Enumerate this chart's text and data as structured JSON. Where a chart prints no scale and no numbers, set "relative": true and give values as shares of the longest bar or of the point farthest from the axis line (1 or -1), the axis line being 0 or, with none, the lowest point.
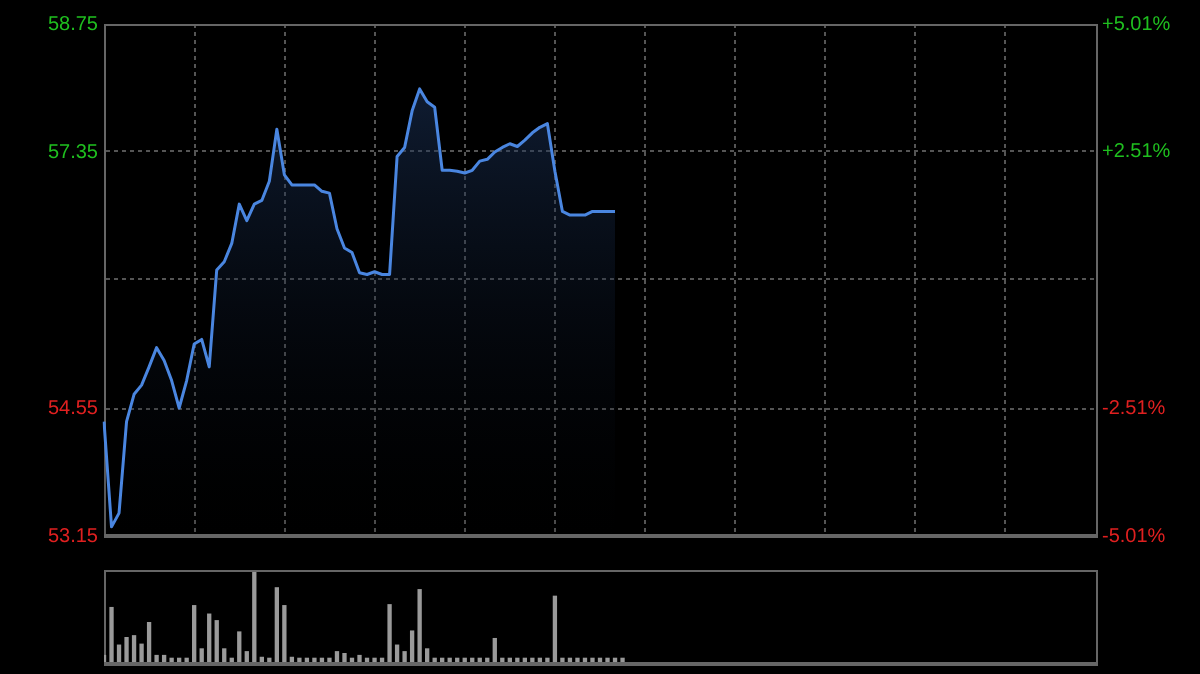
{
  "chart_data": [
    {
      "type": "area",
      "categories": [
        null,
        null,
        null,
        null,
        null,
        null,
        null,
        null,
        null,
        null,
        null,
        null,
        null,
        null,
        null,
        null,
        null,
        null,
        null,
        null,
        null,
        null,
        null,
        null,
        null,
        null,
        null,
        null,
        null,
        null,
        null,
        null,
        null,
        null,
        null,
        null,
        null,
        null,
        null,
        null,
        null,
        null,
        null,
        null,
        null,
        null,
        null,
        null,
        null,
        null,
        null,
        null,
        null,
        null,
        null,
        null,
        null,
        null,
        null,
        null,
        null,
        null,
        null,
        null,
        null,
        null,
        null,
        null,
        null,
        null,
        null,
        null,
        null,
        null,
        null,
        null,
        null,
        null,
        null,
        null,
        null,
        null,
        null,
        null,
        null,
        null,
        null,
        null,
        null,
        null,
        null,
        null,
        null,
        null,
        null,
        null,
        null,
        null,
        null,
        null,
        null,
        null,
        null,
        null,
        null,
        null,
        null,
        null,
        null,
        null,
        null,
        null,
        null,
        null,
        null,
        null,
        null,
        null,
        null,
        null,
        null,
        null,
        null,
        null,
        null,
        null,
        null,
        null,
        null,
        null,
        null,
        null,
        null
      ],
      "values": [
        54.4,
        53.25,
        53.4,
        54.4,
        54.7,
        54.8,
        55.0,
        55.21,
        55.07,
        54.85,
        54.55,
        54.85,
        55.25,
        55.3,
        55.0,
        56.06,
        56.15,
        56.35,
        56.78,
        56.6,
        56.78,
        56.82,
        57.03,
        57.6,
        57.1,
        56.99,
        56.99,
        56.99,
        56.99,
        56.92,
        56.9,
        56.51,
        56.3,
        56.25,
        56.03,
        56.01,
        56.04,
        56.01,
        56.01,
        57.3,
        57.4,
        57.8,
        58.04,
        57.9,
        57.84,
        57.15,
        57.15,
        57.14,
        57.12,
        57.15,
        57.25,
        57.27,
        57.35,
        57.4,
        57.44,
        57.41,
        57.48,
        57.56,
        57.62,
        57.66,
        57.14,
        56.7,
        56.66,
        56.66,
        56.66,
        56.7,
        56.7,
        56.7,
        56.7,
        null,
        null,
        null,
        null,
        null,
        null,
        null,
        null,
        null,
        null,
        null,
        null,
        null,
        null,
        null,
        null,
        null,
        null,
        null,
        null,
        null,
        null,
        null,
        null,
        null,
        null,
        null,
        null,
        null,
        null,
        null,
        null,
        null,
        null,
        null,
        null,
        null,
        null,
        null,
        null,
        null,
        null,
        null,
        null,
        null,
        null,
        null,
        null,
        null,
        null,
        null,
        null,
        null,
        null,
        null,
        null,
        null,
        null,
        null,
        null,
        null,
        null,
        null,
        null
      ],
      "color": "#4a86e0",
      "ylim": [
        53.15,
        58.75
      ],
      "yticks": [
        53.15,
        54.55,
        {
          "value": 55.95,
          "label": null
        },
        57.35,
        58.75
      ],
      "y2lim": [
        -5.01,
        5.01
      ],
      "y2ticks": [
        {
          "value": -5.01,
          "label": "-5.01%"
        },
        {
          "value": -2.51,
          "label": "-2.51%"
        },
        {
          "value": 0,
          "label": null
        },
        {
          "value": 2.51,
          "label": "+2.51%"
        },
        {
          "value": 5.01,
          "label": "+5.01%"
        }
      ],
      "grid": true
    },
    {
      "type": "bar",
      "relative": true,
      "categories": [
        null,
        null,
        null,
        null,
        null,
        null,
        null,
        null,
        null,
        null,
        null,
        null,
        null,
        null,
        null,
        null,
        null,
        null,
        null,
        null,
        null,
        null,
        null,
        null,
        null,
        null,
        null,
        null,
        null,
        null,
        null,
        null,
        null,
        null,
        null,
        null,
        null,
        null,
        null,
        null,
        null,
        null,
        null,
        null,
        null,
        null,
        null,
        null,
        null,
        null,
        null,
        null,
        null,
        null,
        null,
        null,
        null,
        null,
        null,
        null,
        null,
        null,
        null,
        null,
        null,
        null,
        null,
        null,
        null,
        null,
        null,
        null,
        null,
        null,
        null,
        null,
        null,
        null,
        null,
        null,
        null,
        null,
        null,
        null,
        null,
        null,
        null,
        null,
        null,
        null,
        null,
        null,
        null,
        null,
        null,
        null,
        null,
        null,
        null,
        null,
        null,
        null,
        null,
        null,
        null,
        null,
        null,
        null,
        null,
        null,
        null,
        null,
        null,
        null,
        null,
        null,
        null,
        null,
        null,
        null,
        null,
        null,
        null,
        null,
        null,
        null,
        null,
        null,
        null,
        null,
        null,
        null,
        null
      ],
      "values": [
        0.09,
        0.6,
        0.2,
        0.28,
        0.3,
        0.21,
        0.44,
        0.09,
        0.09,
        0.06,
        0.06,
        0.06,
        0.62,
        0.16,
        0.53,
        0.46,
        0.16,
        0.06,
        0.34,
        0.13,
        1,
        0.07,
        0.06,
        0.81,
        0.62,
        0.07,
        0.06,
        0.06,
        0.06,
        0.06,
        0.06,
        0.13,
        0.11,
        0.06,
        0.09,
        0.06,
        0.06,
        0.06,
        0.63,
        0.2,
        0.13,
        0.35,
        0.79,
        0.16,
        0.06,
        0.06,
        0.06,
        0.06,
        0.06,
        0.06,
        0.06,
        0.06,
        0.27,
        0.06,
        0.06,
        0.06,
        0.06,
        0.06,
        0.06,
        0.06,
        0.72,
        0.06,
        0.06,
        0.06,
        0.06,
        0.06,
        0.06,
        0.06,
        0.06,
        0.06,
        null,
        null,
        null,
        null,
        null,
        null,
        null,
        null,
        null,
        null,
        null,
        null,
        null,
        null,
        null,
        null,
        null,
        null,
        null,
        null,
        null,
        null,
        null,
        null,
        null,
        null,
        null,
        null,
        null,
        null,
        null,
        null,
        null,
        null,
        null,
        null,
        null,
        null,
        null,
        null,
        null,
        null,
        null,
        null,
        null,
        null,
        null,
        null,
        null,
        null,
        null,
        null,
        null,
        null,
        null,
        null,
        null,
        null,
        null,
        null,
        null,
        null,
        null
      ],
      "color": "#9a9a9a"
    }
  ]
}
